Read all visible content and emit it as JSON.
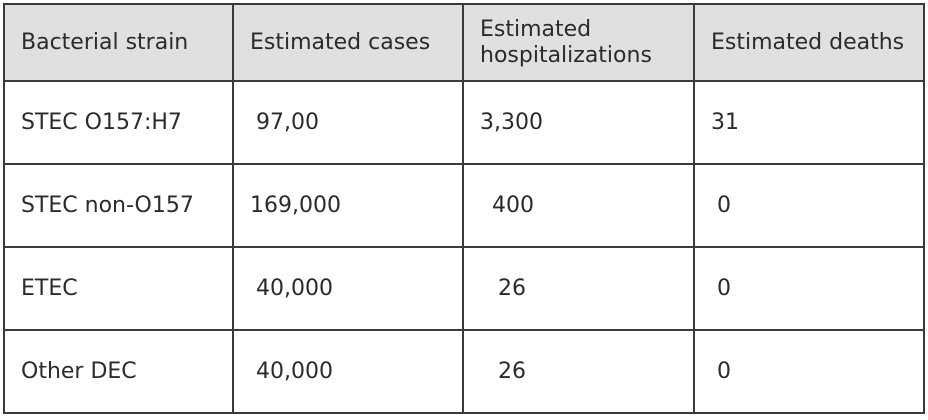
{
  "table": {
    "headers": [
      "Bacterial strain",
      "Estimated cases",
      "Estimated hospitalizations",
      "Estimated deaths"
    ],
    "rows": [
      [
        "STEC O157:H7",
        "97,00",
        "3,300",
        "31"
      ],
      [
        "STEC non-O157",
        "169,000",
        "400",
        "0"
      ],
      [
        "ETEC",
        "40,000",
        "26",
        "0"
      ],
      [
        "Other DEC",
        "40,000",
        "26",
        "0"
      ]
    ]
  }
}
